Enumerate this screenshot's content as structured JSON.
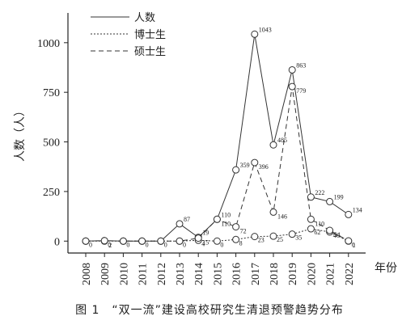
{
  "chart_data": {
    "type": "line",
    "x": [
      "2008",
      "2009",
      "2010",
      "2011",
      "2012",
      "2013",
      "2014",
      "2015",
      "2016",
      "2017",
      "2018",
      "2019",
      "2020",
      "2021",
      "2022"
    ],
    "xlabel": "年份",
    "ylabel": "人数（人）",
    "ylim": [
      -60,
      1150
    ],
    "yticks": [
      0,
      250,
      500,
      750,
      1000
    ],
    "ytick_labels": [
      "0",
      "250",
      "500",
      "750",
      "1000"
    ],
    "grid": false,
    "legend_position": "top-left",
    "series": [
      {
        "name": "人数",
        "dash": "solid",
        "values": [
          0,
          2,
          0,
          0,
          0,
          87,
          19,
          110,
          359,
          1043,
          485,
          863,
          222,
          199,
          134
        ],
        "labels": [
          "",
          "",
          "",
          "",
          "",
          "87",
          "19",
          "110",
          "359",
          "1043",
          "485",
          "863",
          "222",
          "199",
          "134"
        ]
      },
      {
        "name": "博士生",
        "dash": "dotted",
        "values": [
          0,
          0,
          0,
          0,
          0,
          0,
          4,
          0,
          8,
          23,
          25,
          35,
          62,
          46,
          0
        ],
        "labels": [
          "0",
          "0",
          "0",
          "0",
          "0",
          "0",
          "4",
          "0",
          "8",
          "23",
          "25",
          "35",
          "62",
          "46",
          "0"
        ]
      },
      {
        "name": "硕士生",
        "dash": "dashed",
        "values": [
          0,
          2,
          0,
          0,
          0,
          0,
          15,
          110,
          72,
          396,
          146,
          779,
          110,
          54,
          1
        ],
        "labels": [
          "",
          "2",
          "",
          "",
          "",
          "",
          "15",
          "110",
          "72",
          "396",
          "146",
          "779",
          "110",
          "54",
          "1"
        ]
      }
    ]
  },
  "caption": "图 1　“双一流”建设高校研究生清退预警趋势分布"
}
